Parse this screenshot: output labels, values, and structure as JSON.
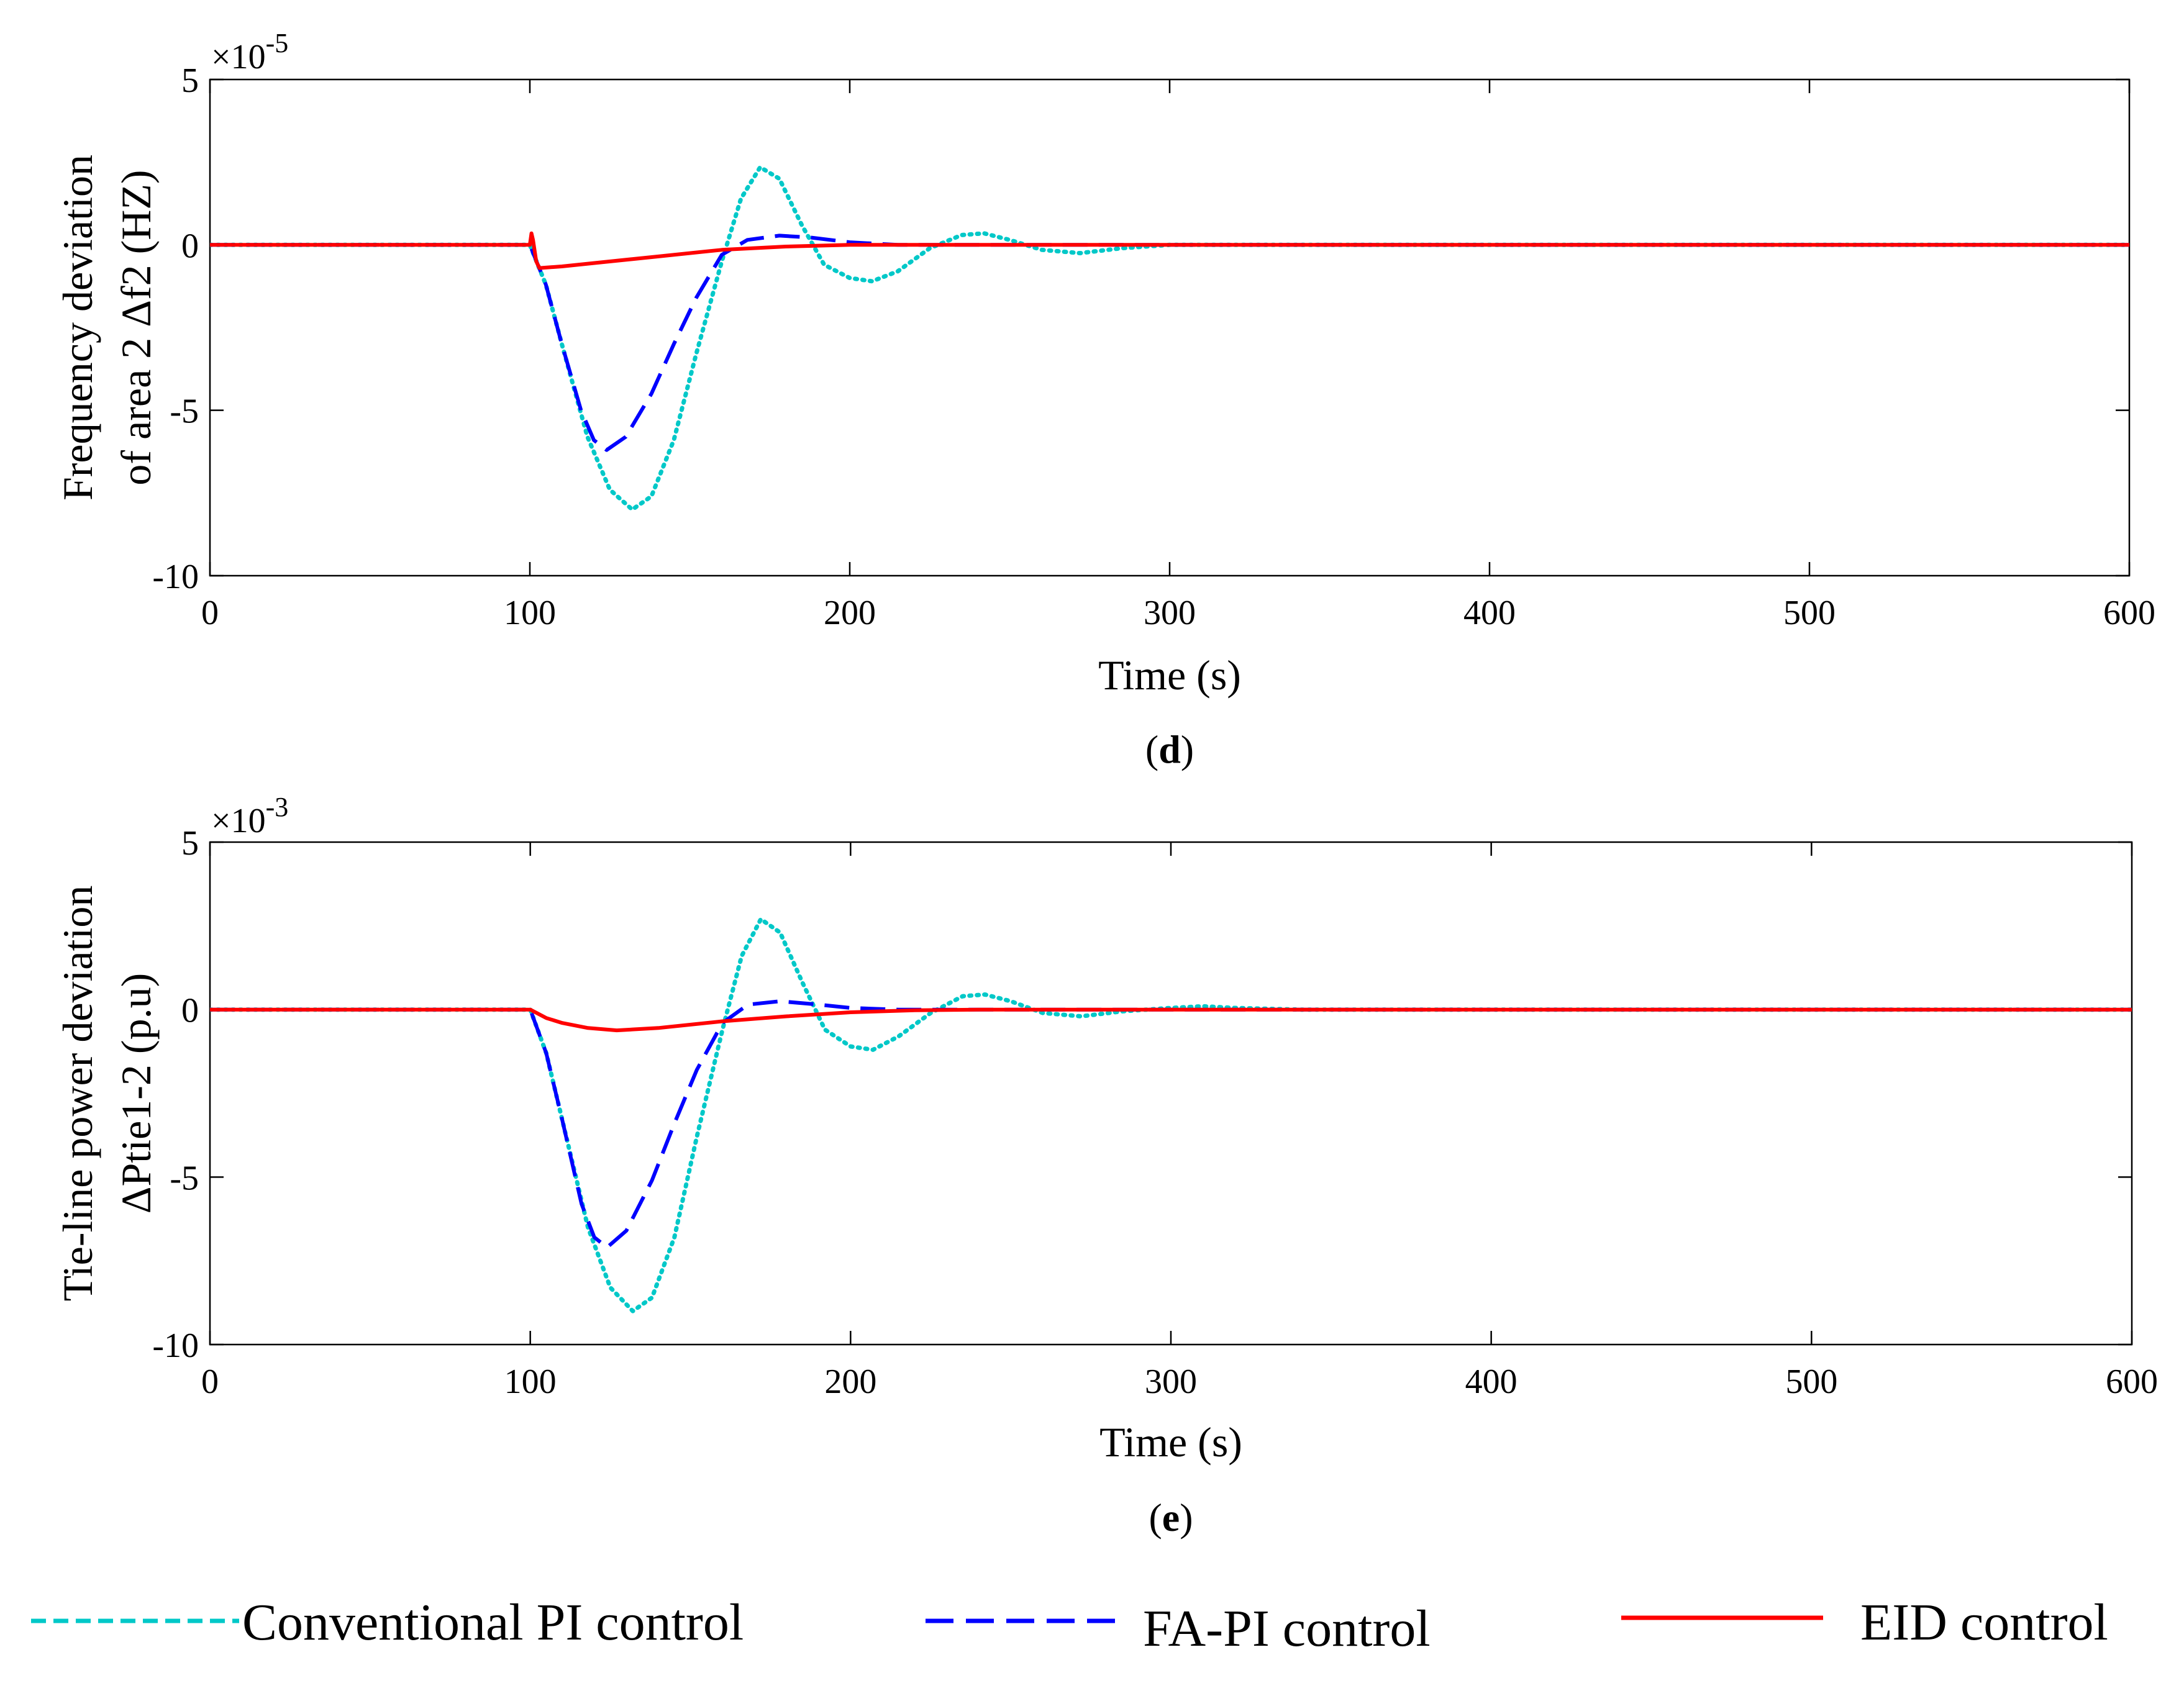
{
  "colors": {
    "conventional_pi": "#00c8c8",
    "fa_pi": "#0000ff",
    "eid": "#ff0000"
  },
  "legend": [
    {
      "label": "Conventional PI control",
      "series_key": "conventional_pi",
      "style": "dotted"
    },
    {
      "label": "FA-PI control",
      "series_key": "fa_pi",
      "style": "dashed"
    },
    {
      "label": "EID control",
      "series_key": "eid",
      "style": "solid"
    }
  ],
  "chart_data": [
    {
      "type": "line",
      "panel": "d",
      "caption_open": "(",
      "caption_letter": "d",
      "caption_close": ")",
      "xlabel": "Time (s)",
      "ylabel_line1": "Frequency deviation",
      "ylabel_line2": "of area 2 Δf2 (HZ)",
      "scale_base": "×10",
      "scale_exp": "-5",
      "xlim": [
        0,
        600
      ],
      "ylim": [
        -10,
        5
      ],
      "xticks": [
        0,
        100,
        200,
        300,
        400,
        500,
        600
      ],
      "yticks": [
        5,
        0,
        -5,
        -10
      ],
      "series": [
        {
          "key": "conventional_pi",
          "name": "Conventional PI control",
          "style": "dotted",
          "points": [
            [
              0,
              0
            ],
            [
              100,
              0
            ],
            [
              105,
              -1.2
            ],
            [
              110,
              -3.0
            ],
            [
              118,
              -5.8
            ],
            [
              125,
              -7.4
            ],
            [
              132,
              -8.0
            ],
            [
              138,
              -7.6
            ],
            [
              145,
              -5.9
            ],
            [
              152,
              -3.3
            ],
            [
              160,
              -0.5
            ],
            [
              166,
              1.4
            ],
            [
              172,
              2.35
            ],
            [
              178,
              2.0
            ],
            [
              185,
              0.6
            ],
            [
              192,
              -0.6
            ],
            [
              200,
              -1.0
            ],
            [
              207,
              -1.1
            ],
            [
              215,
              -0.8
            ],
            [
              225,
              -0.1
            ],
            [
              235,
              0.3
            ],
            [
              242,
              0.35
            ],
            [
              250,
              0.15
            ],
            [
              260,
              -0.15
            ],
            [
              272,
              -0.25
            ],
            [
              285,
              -0.1
            ],
            [
              300,
              0.0
            ],
            [
              600,
              0.0
            ]
          ]
        },
        {
          "key": "fa_pi",
          "name": "FA-PI control",
          "style": "dashed",
          "points": [
            [
              0,
              0
            ],
            [
              100,
              0
            ],
            [
              105,
              -1.2
            ],
            [
              110,
              -3.0
            ],
            [
              116,
              -5.0
            ],
            [
              120,
              -5.9
            ],
            [
              124,
              -6.2
            ],
            [
              130,
              -5.8
            ],
            [
              138,
              -4.5
            ],
            [
              145,
              -3.0
            ],
            [
              152,
              -1.6
            ],
            [
              160,
              -0.3
            ],
            [
              168,
              0.15
            ],
            [
              178,
              0.28
            ],
            [
              188,
              0.22
            ],
            [
              200,
              0.08
            ],
            [
              215,
              0.0
            ],
            [
              600,
              0.0
            ]
          ]
        },
        {
          "key": "eid",
          "name": "EID control",
          "style": "solid",
          "points": [
            [
              0,
              0
            ],
            [
              100,
              0
            ],
            [
              100.5,
              0.35
            ],
            [
              101,
              0.15
            ],
            [
              102,
              -0.5
            ],
            [
              103,
              -0.7
            ],
            [
              110,
              -0.65
            ],
            [
              120,
              -0.55
            ],
            [
              140,
              -0.35
            ],
            [
              160,
              -0.15
            ],
            [
              180,
              -0.05
            ],
            [
              200,
              0.0
            ],
            [
              600,
              0.0
            ]
          ]
        }
      ]
    },
    {
      "type": "line",
      "panel": "e",
      "caption_open": "(",
      "caption_letter": "e",
      "caption_close": ")",
      "xlabel": "Time (s)",
      "ylabel_line1": "Tie-line power deviation",
      "ylabel_line2": "ΔPtie1-2 (p.u)",
      "scale_base": "×10",
      "scale_exp": "-3",
      "xlim": [
        0,
        600
      ],
      "ylim": [
        -10,
        5
      ],
      "xticks": [
        0,
        100,
        200,
        300,
        400,
        500,
        600
      ],
      "yticks": [
        5,
        0,
        -5,
        -10
      ],
      "series": [
        {
          "key": "conventional_pi",
          "name": "Conventional PI control",
          "style": "dotted",
          "points": [
            [
              0,
              0
            ],
            [
              100,
              0
            ],
            [
              105,
              -1.3
            ],
            [
              110,
              -3.3
            ],
            [
              118,
              -6.5
            ],
            [
              125,
              -8.3
            ],
            [
              132,
              -9.0
            ],
            [
              138,
              -8.6
            ],
            [
              145,
              -6.8
            ],
            [
              152,
              -3.8
            ],
            [
              160,
              -0.6
            ],
            [
              166,
              1.6
            ],
            [
              172,
              2.7
            ],
            [
              178,
              2.3
            ],
            [
              185,
              0.8
            ],
            [
              192,
              -0.6
            ],
            [
              200,
              -1.1
            ],
            [
              207,
              -1.2
            ],
            [
              215,
              -0.8
            ],
            [
              225,
              -0.1
            ],
            [
              235,
              0.4
            ],
            [
              242,
              0.45
            ],
            [
              250,
              0.25
            ],
            [
              260,
              -0.1
            ],
            [
              272,
              -0.2
            ],
            [
              285,
              -0.05
            ],
            [
              300,
              0.05
            ],
            [
              310,
              0.1
            ],
            [
              320,
              0.05
            ],
            [
              340,
              0.0
            ],
            [
              600,
              0.0
            ]
          ]
        },
        {
          "key": "fa_pi",
          "name": "FA-PI control",
          "style": "dashed",
          "points": [
            [
              0,
              0
            ],
            [
              100,
              0
            ],
            [
              105,
              -1.3
            ],
            [
              110,
              -3.3
            ],
            [
              116,
              -5.8
            ],
            [
              120,
              -6.8
            ],
            [
              124,
              -7.1
            ],
            [
              130,
              -6.6
            ],
            [
              138,
              -5.1
            ],
            [
              145,
              -3.4
            ],
            [
              152,
              -1.8
            ],
            [
              160,
              -0.4
            ],
            [
              168,
              0.15
            ],
            [
              178,
              0.25
            ],
            [
              190,
              0.15
            ],
            [
              200,
              0.05
            ],
            [
              215,
              0.0
            ],
            [
              600,
              0.0
            ]
          ]
        },
        {
          "key": "eid",
          "name": "EID control",
          "style": "solid",
          "points": [
            [
              0,
              0
            ],
            [
              100,
              0
            ],
            [
              105,
              -0.25
            ],
            [
              110,
              -0.4
            ],
            [
              118,
              -0.55
            ],
            [
              127,
              -0.62
            ],
            [
              140,
              -0.55
            ],
            [
              160,
              -0.35
            ],
            [
              180,
              -0.2
            ],
            [
              200,
              -0.08
            ],
            [
              220,
              -0.02
            ],
            [
              240,
              0.0
            ],
            [
              600,
              0.0
            ]
          ]
        }
      ]
    }
  ]
}
